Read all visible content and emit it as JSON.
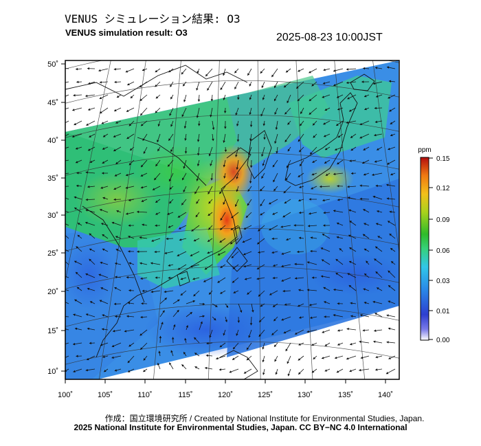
{
  "header": {
    "title_jp": "VENUS シミュレーション結果: O3",
    "title_en": "VENUS simulation result: O3",
    "timestamp": "2025-08-23 10:00JST"
  },
  "map": {
    "longitude_labels": [
      "100˚",
      "105˚",
      "110˚",
      "115˚",
      "120˚",
      "125˚",
      "130˚",
      "135˚",
      "140˚"
    ],
    "latitude_labels": [
      "50˚",
      "45˚",
      "40˚",
      "35˚",
      "30˚",
      "25˚",
      "20˚",
      "15˚",
      "10˚"
    ],
    "longitude_range": [
      100,
      142
    ],
    "latitude_range": [
      9,
      51
    ],
    "species": "O3"
  },
  "colorbar": {
    "unit": "ppm",
    "tick_labels": [
      "0.15",
      "0.12",
      "0.09",
      "0.06",
      "0.03",
      "0.01",
      "0.00"
    ],
    "colors": [
      "#ffffff",
      "#2e3fd0",
      "#2a8ae8",
      "#31c7e8",
      "#36d17c",
      "#2fbb2a",
      "#a9d21c",
      "#f2c01a",
      "#f07a12",
      "#e02a10",
      "#b40f0f"
    ]
  },
  "footer": {
    "credit": "作成：国立環境研究所 / Created by National Institute for Environmental Studies, Japan.",
    "license": "2025 National Institute for Environmental Studies, Japan. CC BY−NC 4.0 International"
  }
}
